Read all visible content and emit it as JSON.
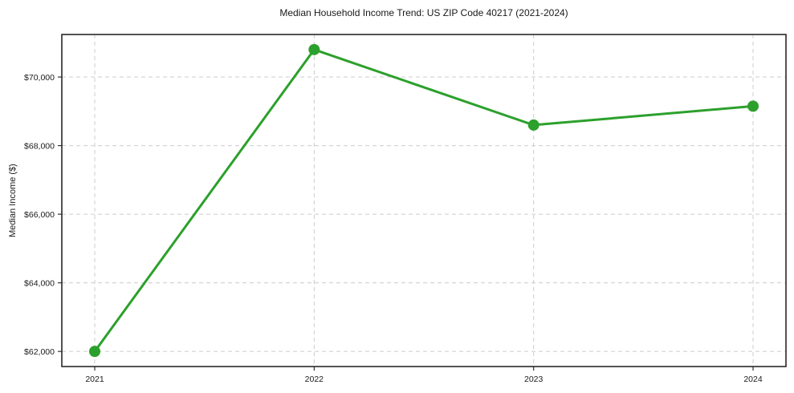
{
  "chart": {
    "title": "Median Household Income Trend: US ZIP Code 40217 (2021-2024)",
    "ylabel": "Median Income ($)"
  },
  "chart_data": {
    "type": "line",
    "title": "Median Household Income Trend: US ZIP Code 40217 (2021-2024)",
    "xlabel": "",
    "ylabel": "Median Income ($)",
    "categories": [
      "2021",
      "2022",
      "2023",
      "2024"
    ],
    "series": [
      {
        "name": "Median Household Income",
        "values": [
          62000,
          70800,
          68600,
          69150
        ]
      }
    ],
    "ylim": [
      61560,
      71240
    ],
    "yticks": [
      62000,
      64000,
      66000,
      68000,
      70000
    ],
    "ytick_labels": [
      "$62,000",
      "$64,000",
      "$66,000",
      "$68,000",
      "$70,000"
    ],
    "grid": true,
    "grid_style": "dashed",
    "legend": "none",
    "line_color": "#2ca02c",
    "marker": "circle",
    "marker_radius": 7,
    "background_color": "#ffffff",
    "frame_color": "#1a1a1a",
    "grid_color": "#cccccc"
  }
}
